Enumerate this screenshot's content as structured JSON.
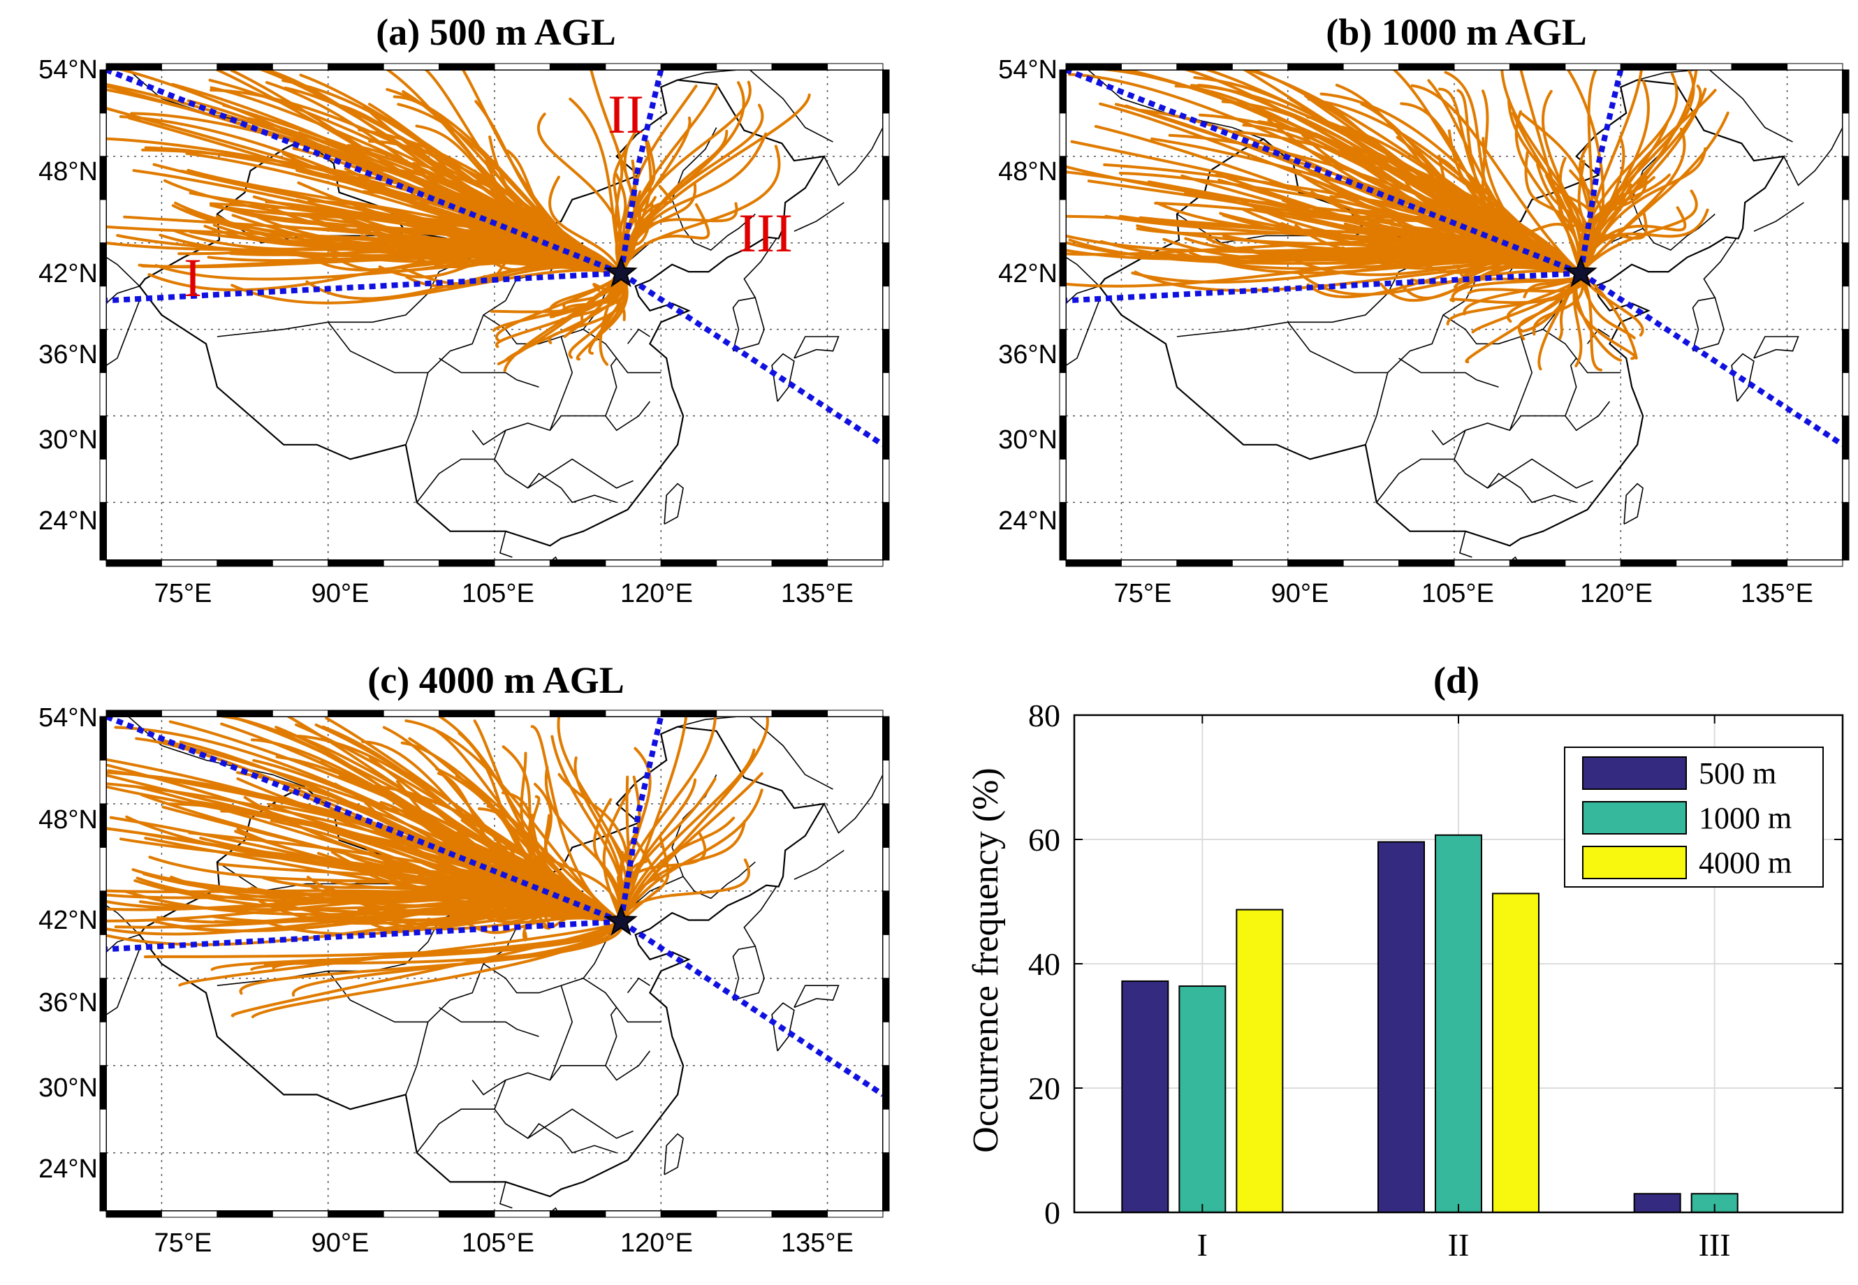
{
  "maps": [
    {
      "title": "(a) 500 m AGL",
      "lat_labels": [
        "54°N",
        "48°N",
        "42°N",
        "36°N",
        "30°N",
        "24°N"
      ],
      "lon_labels": [
        "75°E",
        "90°E",
        "105°E",
        "120°E",
        "135°E"
      ],
      "region_labels": [
        "I",
        "II",
        "III"
      ],
      "trajectory_color": "#e07b00",
      "sector_line_color": "#1010e0",
      "site_marker": "star-icon"
    },
    {
      "title": "(b) 1000 m AGL",
      "lat_labels": [
        "54°N",
        "48°N",
        "42°N",
        "36°N",
        "30°N",
        "24°N"
      ],
      "lon_labels": [
        "75°E",
        "90°E",
        "105°E",
        "120°E",
        "135°E"
      ],
      "trajectory_color": "#e07b00",
      "sector_line_color": "#1010e0",
      "site_marker": "star-icon"
    },
    {
      "title": "(c) 4000 m AGL",
      "lat_labels": [
        "54°N",
        "48°N",
        "42°N",
        "36°N",
        "30°N",
        "24°N"
      ],
      "lon_labels": [
        "75°E",
        "90°E",
        "105°E",
        "120°E",
        "135°E"
      ],
      "trajectory_color": "#e07b00",
      "sector_line_color": "#1010e0",
      "site_marker": "star-icon"
    }
  ],
  "chart_data": {
    "type": "bar",
    "title": "(d)",
    "categories": [
      "I",
      "II",
      "III"
    ],
    "series": [
      {
        "name": "500 m",
        "values": [
          37.2,
          59.6,
          3.0
        ],
        "color": "#342b80"
      },
      {
        "name": "1000 m",
        "values": [
          36.4,
          60.7,
          3.0
        ],
        "color": "#35b89b"
      },
      {
        "name": "4000 m",
        "values": [
          48.7,
          51.3,
          0.0
        ],
        "color": "#f8f80f"
      }
    ],
    "xlabel": "",
    "ylabel": "Occurrence frequency (%)",
    "ylim": [
      0,
      80
    ],
    "yticks": [
      "0",
      "20",
      "40",
      "60",
      "80"
    ],
    "grid": true,
    "legend_position": "top-right"
  }
}
